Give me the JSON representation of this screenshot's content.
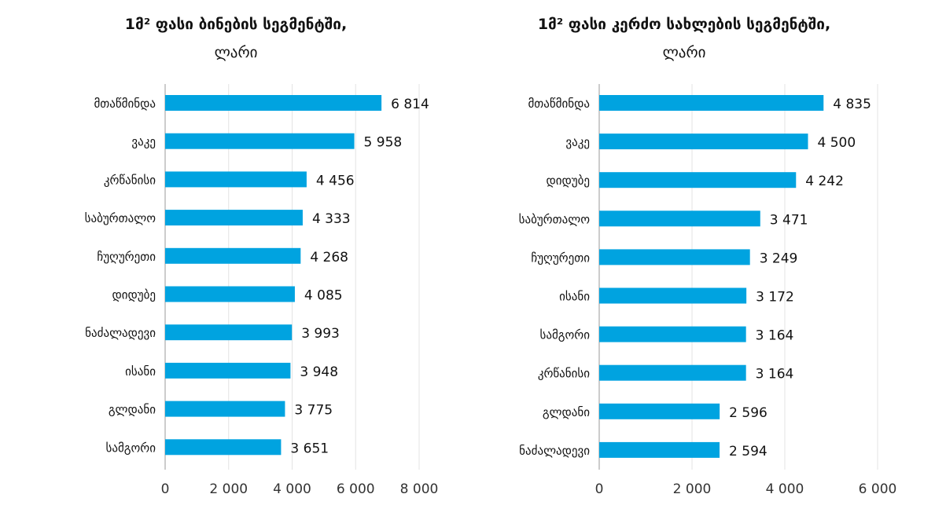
{
  "chart_data": [
    {
      "type": "bar",
      "orientation": "horizontal",
      "title": "1მ² ფასი ბინების სეგმენტში,",
      "subtitle": "ლარი",
      "categories": [
        "მთაწმინდა",
        "ვაკე",
        "კრწანისი",
        "საბურთალო",
        "ჩუღურეთი",
        "დიდუბე",
        "ნაძალადევი",
        "ისანი",
        "გლდანი",
        "სამგორი"
      ],
      "values": [
        6814,
        5958,
        4456,
        4333,
        4268,
        4085,
        3993,
        3948,
        3775,
        3651
      ],
      "value_labels": [
        "6 814",
        "5 958",
        "4 456",
        "4 333",
        "4 268",
        "4 085",
        "3 993",
        "3 948",
        "3 775",
        "3 651"
      ],
      "xlim": [
        0,
        8000
      ],
      "ticks": [
        0,
        2000,
        4000,
        6000,
        8000
      ],
      "tick_labels": [
        "0",
        "2 000",
        "4 000",
        "6 000",
        "8 000"
      ],
      "grid": true,
      "color": "#00a3e0"
    },
    {
      "type": "bar",
      "orientation": "horizontal",
      "title": "1მ² ფასი კერძო სახლების სეგმენტში,",
      "subtitle": "ლარი",
      "categories": [
        "მთაწმინდა",
        "ვაკე",
        "დიდუბე",
        "საბურთალო",
        "ჩუღურეთი",
        "ისანი",
        "სამგორი",
        "კრწანისი",
        "გლდანი",
        "ნაძალადევი"
      ],
      "values": [
        4835,
        4500,
        4242,
        3471,
        3249,
        3172,
        3164,
        3164,
        2596,
        2594
      ],
      "value_labels": [
        "4 835",
        "4 500",
        "4 242",
        "3 471",
        "3 249",
        "3 172",
        "3 164",
        "3 164",
        "2 596",
        "2 594"
      ],
      "xlim": [
        0,
        6000
      ],
      "ticks": [
        0,
        2000,
        4000,
        6000
      ],
      "tick_labels": [
        "0",
        "2 000",
        "4 000",
        "6 000"
      ],
      "grid": true,
      "color": "#00a3e0"
    }
  ]
}
